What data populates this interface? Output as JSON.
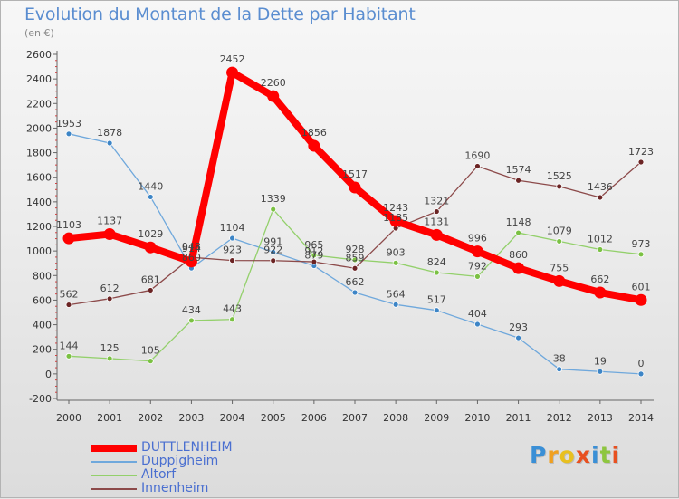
{
  "title": "Evolution du Montant de la Dette par Habitant",
  "subtitle": "(en €)",
  "logo": {
    "text": "Proxiti",
    "colors": [
      "#3a8fd6",
      "#f0a020",
      "#e8c020",
      "#e85020",
      "#3a8fd6",
      "#8ec63f",
      "#e85020"
    ]
  },
  "chart_data": {
    "type": "line",
    "title": "Evolution du Montant de la Dette par Habitant",
    "subtitle": "(en €)",
    "xlabel": "",
    "ylabel": "",
    "ylim": [
      -200,
      2600
    ],
    "yticks": [
      -200,
      0,
      200,
      400,
      600,
      800,
      1000,
      1200,
      1400,
      1600,
      1800,
      2000,
      2200,
      2400,
      2600
    ],
    "x": [
      "2000",
      "2001",
      "2002",
      "2003",
      "2004",
      "2005",
      "2006",
      "2007",
      "2008",
      "2009",
      "2010",
      "2011",
      "2012",
      "2013",
      "2014"
    ],
    "grid": false,
    "legend_position": "bottom-left",
    "series": [
      {
        "name": "DUTTLENHEIM",
        "color": "#ff0000",
        "marker_color": "#ff0000",
        "bold": true,
        "values": [
          1103,
          1137,
          1029,
          914,
          2452,
          2260,
          1856,
          1517,
          1243,
          1131,
          996,
          860,
          755,
          662,
          601
        ]
      },
      {
        "name": "Duppigheim",
        "color": "#6fa8dc",
        "marker_color": "#3d85c6",
        "bold": false,
        "values": [
          1953,
          1878,
          1440,
          860,
          1104,
          991,
          879,
          662,
          564,
          517,
          404,
          293,
          38,
          19,
          0
        ]
      },
      {
        "name": "Altorf",
        "color": "#93d06b",
        "marker_color": "#7bc143",
        "bold": false,
        "values": [
          144,
          125,
          105,
          434,
          443,
          1339,
          965,
          928,
          903,
          824,
          792,
          1148,
          1079,
          1012,
          973
        ]
      },
      {
        "name": "Innenheim",
        "color": "#8c4a4a",
        "marker_color": "#6b2424",
        "bold": false,
        "values": [
          562,
          612,
          681,
          948,
          923,
          922,
          912,
          859,
          1185,
          1321,
          1690,
          1574,
          1525,
          1436,
          1723
        ]
      }
    ]
  }
}
